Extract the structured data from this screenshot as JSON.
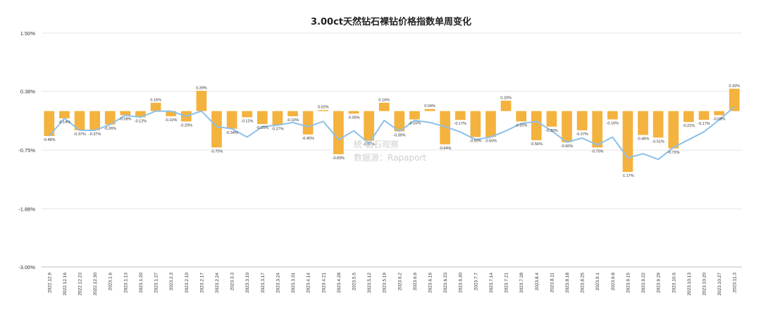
{
  "chart_data": {
    "type": "bar",
    "title": "3.00ct天然钻石裸钻价格指数单周变化",
    "categories": [
      "2022.12.9",
      "2022.12.16",
      "2022.12.23",
      "2022.12.30",
      "2023.1.6",
      "2023.1.13",
      "2023.1.20",
      "2023.1.27",
      "2023.2.3",
      "2023.2.10",
      "2023.2.17",
      "2023.2.24",
      "2023.3.3",
      "2023.3.10",
      "2023.3.17",
      "2023.3.24",
      "2023.3.31",
      "2023.4.14",
      "2023.4.21",
      "2023.4.28",
      "2023.5.5",
      "2023.5.12",
      "2023.5.19",
      "2023.6.2",
      "2023.6.9",
      "2023.6.16",
      "2023.6.23",
      "2023.6.30",
      "2023.7.7",
      "2023.7.14",
      "2023.7.21",
      "2023.7.28",
      "2023.8.4",
      "2023.8.11",
      "2023.8.18",
      "2023.8.25",
      "2023.9.1",
      "2023.9.8",
      "2023.9.15",
      "2023.9.22",
      "2023.9.29",
      "2023.10.6",
      "2023.10.13",
      "2023.10.20",
      "2023.10.27",
      "2023.11.3"
    ],
    "values": [
      -0.48,
      -0.14,
      -0.37,
      -0.37,
      -0.26,
      -0.08,
      -0.12,
      0.16,
      -0.1,
      -0.2,
      0.39,
      -0.7,
      -0.34,
      -0.12,
      -0.25,
      -0.27,
      -0.1,
      -0.45,
      0.02,
      -0.83,
      -0.05,
      -0.57,
      0.16,
      -0.39,
      -0.16,
      0.04,
      -0.64,
      -0.17,
      -0.5,
      -0.5,
      0.2,
      -0.2,
      -0.56,
      -0.3,
      -0.6,
      -0.37,
      -0.7,
      -0.16,
      -1.17,
      -0.46,
      -0.51,
      -0.72,
      -0.21,
      -0.17,
      -0.08,
      0.43
    ],
    "data_labels": [
      "-0.48%",
      "-0.14%",
      "-0.37%",
      "-0.37%",
      "-0.26%",
      "-0.08%",
      "-0.12%",
      "0.16%",
      "-0.10%",
      "-0.20%",
      "0.39%",
      "-0.70%",
      "-0.34%",
      "-0.12%",
      "-0.25%",
      "-0.27%",
      "-0.10%",
      "-0.45%",
      "0.02%",
      "-0.83%",
      "-0.05%",
      "-0.57%",
      "0.16%",
      "-0.39%",
      "-0.16%",
      "0.04%",
      "-0.64%",
      "-0.17%",
      "-0.50%",
      "-0.50%",
      "0.20%",
      "-0.20%",
      "-0.56%",
      "-0.30%",
      "-0.60%",
      "-0.37%",
      "-0.70%",
      "-0.16%",
      "-1.17%",
      "-0.46%",
      "-0.51%",
      "-0.72%",
      "-0.21%",
      "-0.17%",
      "-0.08%",
      "0.43%"
    ],
    "trend_line": [
      -0.48,
      -0.14,
      -0.37,
      -0.37,
      -0.26,
      -0.08,
      -0.12,
      0.0,
      0.0,
      -0.1,
      0.0,
      -0.3,
      -0.34,
      -0.5,
      -0.3,
      -0.27,
      -0.22,
      -0.3,
      -0.2,
      -0.55,
      -0.38,
      -0.62,
      -0.18,
      -0.39,
      -0.18,
      -0.22,
      -0.3,
      -0.4,
      -0.55,
      -0.5,
      -0.38,
      -0.24,
      -0.2,
      -0.38,
      -0.6,
      -0.52,
      -0.65,
      -0.5,
      -0.9,
      -0.82,
      -0.93,
      -0.7,
      -0.55,
      -0.4,
      -0.17,
      0.08
    ],
    "ylim": [
      -3.0,
      1.5
    ],
    "yticks": [
      1.5,
      0.38,
      -0.75,
      -1.88,
      -3.0
    ],
    "ytick_labels": [
      "1.50%",
      "0.38%",
      "-0.75%",
      "-1.88%",
      "-3.00%"
    ],
    "grid": true,
    "bar_color": "#f4b23e",
    "line_color": "#8ec1ea"
  },
  "watermark": {
    "line1": "统   钻石观察",
    "line2": "数据源：Rapaport"
  }
}
